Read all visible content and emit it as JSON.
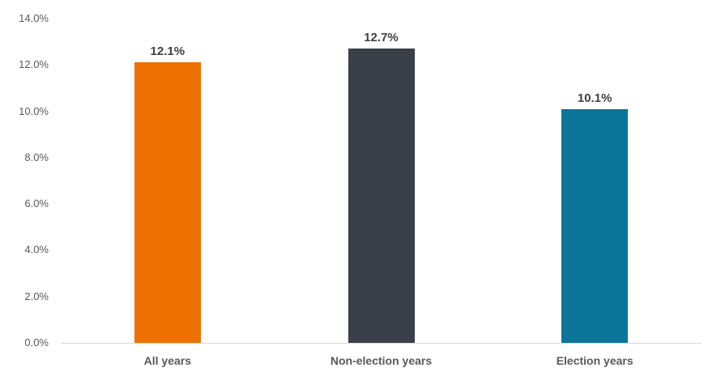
{
  "chart_data": {
    "type": "bar",
    "title": "",
    "xlabel": "",
    "ylabel": "",
    "categories": [
      "All years",
      "Non-election years",
      "Election years"
    ],
    "values": [
      12.1,
      12.7,
      10.1
    ],
    "value_labels": [
      "12.1%",
      "12.7%",
      "10.1%"
    ],
    "bar_colors": [
      "#ED7000",
      "#3A3F4A",
      "#0B7499"
    ],
    "ylim": [
      0,
      14
    ],
    "yticks": [
      {
        "value": 14,
        "label": "14.0%"
      },
      {
        "value": 12,
        "label": "12.0%"
      },
      {
        "value": 10,
        "label": "10.0%"
      },
      {
        "value": 8,
        "label": "8.0%"
      },
      {
        "value": 6,
        "label": "6.0%"
      },
      {
        "value": 4,
        "label": "4.0%"
      },
      {
        "value": 2,
        "label": "2.0%"
      },
      {
        "value": 0,
        "label": "0.0%"
      }
    ],
    "grid": false,
    "legend_position": "none"
  },
  "colors": {
    "axis_line": "#D9D9D9",
    "tick_text": "#595959",
    "value_label_text": "#404040",
    "category_label_text": "#595959",
    "background": "#FFFFFF"
  }
}
